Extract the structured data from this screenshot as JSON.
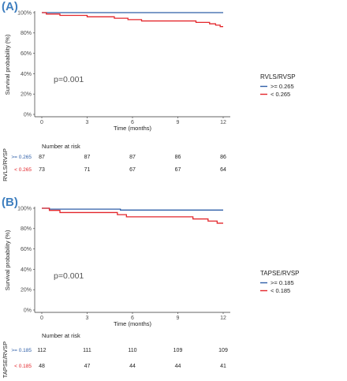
{
  "chart_data": [
    {
      "type": "line",
      "panel_label": "(A)",
      "xlabel": "Time (months)",
      "ylabel": "Survival probability (%)",
      "xlim": [
        0,
        12
      ],
      "ylim": [
        0,
        100
      ],
      "x_ticks": [
        "0",
        "3",
        "6",
        "9",
        "12"
      ],
      "y_ticks": [
        "0%",
        "20%",
        "40%",
        "60%",
        "80%",
        "100%"
      ],
      "pvalue": "p=0.001",
      "legend_title": "RVLS/RVSP",
      "legend_position": "right",
      "series": [
        {
          "name": ">= 0.265",
          "color": "#2f5fa8",
          "x": [
            0,
            12
          ],
          "y": [
            100,
            100
          ]
        },
        {
          "name": "< 0.265",
          "color": "#e3262b",
          "x": [
            0,
            0.3,
            0.3,
            1.2,
            1.2,
            3.0,
            3.0,
            4.8,
            4.8,
            5.7,
            5.7,
            6.6,
            6.6,
            10.2,
            10.2,
            11.1,
            11.1,
            11.5,
            11.5,
            11.8,
            11.8,
            12
          ],
          "y": [
            100,
            100,
            98.6,
            98.6,
            97.3,
            97.3,
            95.9,
            95.9,
            94.5,
            94.5,
            93.1,
            93.1,
            91.8,
            91.8,
            90.4,
            90.4,
            89.0,
            89.0,
            87.7,
            87.7,
            86.3,
            86.3
          ]
        }
      ],
      "risk_table": {
        "title": "Number at risk",
        "strata_title": "RVLS/RVSP",
        "x": [
          0,
          3,
          6,
          9,
          12
        ],
        "groups": [
          {
            "label": ">= 0.265",
            "color": "#2f5fa8",
            "values": [
              87,
              87,
              87,
              86,
              86
            ]
          },
          {
            "label": "< 0.265",
            "color": "#e3262b",
            "values": [
              73,
              71,
              67,
              67,
              64
            ]
          }
        ]
      }
    },
    {
      "type": "line",
      "panel_label": "(B)",
      "xlabel": "Time (months)",
      "ylabel": "Survival probability (%)",
      "xlim": [
        0,
        12
      ],
      "ylim": [
        0,
        100
      ],
      "x_ticks": [
        "0",
        "3",
        "6",
        "9",
        "12"
      ],
      "y_ticks": [
        "0%",
        "20%",
        "40%",
        "60%",
        "80%",
        "100%"
      ],
      "pvalue": "p=0.001",
      "legend_title": "TAPSE/RVSP",
      "legend_position": "right",
      "series": [
        {
          "name": ">= 0.185",
          "color": "#2f5fa8",
          "x": [
            0,
            0.5,
            0.5,
            5.2,
            5.2,
            12
          ],
          "y": [
            100,
            100,
            99.1,
            99.1,
            98.2,
            98.2
          ]
        },
        {
          "name": "< 0.185",
          "color": "#e3262b",
          "x": [
            0,
            0.5,
            0.5,
            1.2,
            1.2,
            5.0,
            5.0,
            5.6,
            5.6,
            10.0,
            10.0,
            11.0,
            11.0,
            11.6,
            11.6,
            12
          ],
          "y": [
            100,
            100,
            97.9,
            97.9,
            95.8,
            95.8,
            93.7,
            93.7,
            91.6,
            91.6,
            89.5,
            89.5,
            87.4,
            87.4,
            85.3,
            85.3
          ]
        }
      ],
      "risk_table": {
        "title": "Number at risk",
        "strata_title": "TAPSE/RVSP",
        "x": [
          0,
          3,
          6,
          9,
          12
        ],
        "groups": [
          {
            "label": ">= 0.185",
            "color": "#2f5fa8",
            "values": [
              112,
              111,
              110,
              109,
              109
            ]
          },
          {
            "label": "< 0.185",
            "color": "#e3262b",
            "values": [
              48,
              47,
              44,
              44,
              41
            ]
          }
        ]
      }
    }
  ]
}
